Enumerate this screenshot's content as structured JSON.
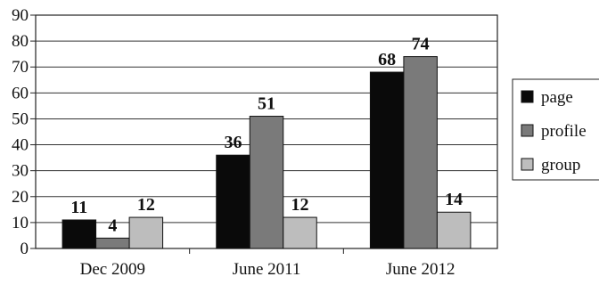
{
  "chart_data": {
    "type": "bar",
    "categories": [
      "Dec 2009",
      "June 2011",
      "June 2012"
    ],
    "series": [
      {
        "name": "page",
        "values": [
          11,
          36,
          68
        ],
        "color": "#0a0a0a"
      },
      {
        "name": "profile",
        "values": [
          4,
          51,
          74
        ],
        "color": "#7a7a7a"
      },
      {
        "name": "group",
        "values": [
          12,
          12,
          14
        ],
        "color": "#bdbdbd"
      }
    ],
    "data_labels": [
      [
        "11",
        "36",
        "68"
      ],
      [
        "4",
        "51",
        "74"
      ],
      [
        "12",
        "12",
        "14"
      ]
    ],
    "ylim": [
      0,
      90
    ],
    "yticks": [
      0,
      10,
      20,
      30,
      40,
      50,
      60,
      70,
      80,
      90
    ],
    "ytick_labels": [
      "0",
      "10",
      "20",
      "30",
      "40",
      "50",
      "60",
      "70",
      "80",
      "90"
    ],
    "grid": true,
    "legend_position": "right",
    "title": "",
    "xlabel": "",
    "ylabel": ""
  }
}
